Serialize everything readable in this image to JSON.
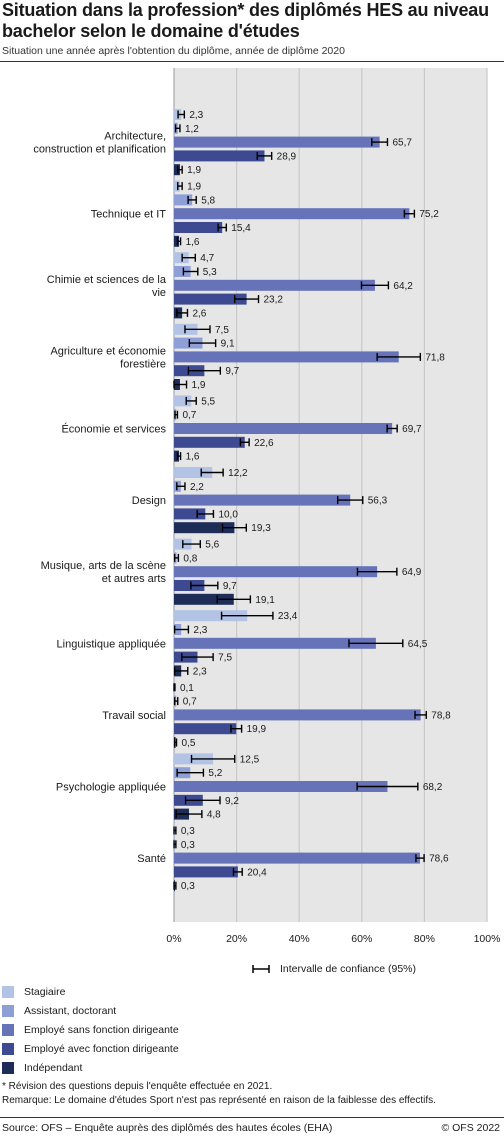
{
  "title": "Situation dans la profession* des diplômés HES au niveau bachelor selon le domaine d'études",
  "subtitle": "Situation une année après l'obtention du diplôme, année de diplôme 2020",
  "ci_legend_label": "Intervalle de confiance (95%)",
  "footnote": "* Révision des questions depuis l'enquête effectuée en 2021.",
  "remark": "Remarque: Le domaine d'études Sport n'est pas représenté en raison de la faiblesse des effectifs.",
  "source": "Source: OFS – Enquête auprès des diplômés des hautes écoles (EHA)",
  "copyright": "© OFS 2022",
  "chart_data": {
    "type": "bar",
    "orientation": "horizontal",
    "categories": [
      "Architecture, construction et planification",
      "Technique et IT",
      "Chimie et sciences de la vie",
      "Agriculture et économie forestière",
      "Économie et services",
      "Design",
      "Musique, arts de la scène et autres arts",
      "Linguistique appliquée",
      "Travail social",
      "Psychologie appliquée",
      "Santé"
    ],
    "category_lines": [
      [
        "Architecture,",
        "construction et planification"
      ],
      [
        "Technique et IT"
      ],
      [
        "Chimie et sciences de la",
        "vie"
      ],
      [
        "Agriculture et économie",
        "forestière"
      ],
      [
        "Économie et services"
      ],
      [
        "Design"
      ],
      [
        "Musique, arts de la scène",
        "et autres arts"
      ],
      [
        "Linguistique appliquée"
      ],
      [
        "Travail social"
      ],
      [
        "Psychologie appliquée"
      ],
      [
        "Santé"
      ]
    ],
    "series": [
      {
        "name": "Stagiaire",
        "color": "#b3c3e6",
        "values": [
          2.3,
          1.9,
          4.7,
          7.5,
          5.5,
          12.2,
          5.6,
          23.4,
          0.1,
          12.5,
          0.3
        ],
        "labels": [
          "2,3",
          "1,9",
          "4,7",
          "7,5",
          "5,5",
          "12,2",
          "5,6",
          "23,4",
          "0,1",
          "12,5",
          "0,3"
        ],
        "ci": [
          [
            1.3,
            3.3
          ],
          [
            1.2,
            2.6
          ],
          [
            2.6,
            6.8
          ],
          [
            3.5,
            11.5
          ],
          [
            3.9,
            7.1
          ],
          [
            8.7,
            15.7
          ],
          [
            2.8,
            8.4
          ],
          [
            15.2,
            31.6
          ],
          [
            0.0,
            0.3
          ],
          [
            5.6,
            19.4
          ],
          [
            0.0,
            0.6
          ]
        ]
      },
      {
        "name": "Assistant, doctorant",
        "color": "#8d9fd6",
        "values": [
          1.2,
          5.8,
          5.3,
          9.1,
          0.7,
          2.2,
          0.8,
          2.3,
          0.7,
          5.2,
          0.3
        ],
        "labels": [
          "1,2",
          "5,8",
          "5,3",
          "9,1",
          "0,7",
          "2,2",
          "0,8",
          "2,3",
          "0,7",
          "5,2",
          "0,3"
        ],
        "ci": [
          [
            0.5,
            1.9
          ],
          [
            4.5,
            7.1
          ],
          [
            3.0,
            7.6
          ],
          [
            4.9,
            13.3
          ],
          [
            0.3,
            1.1
          ],
          [
            0.9,
            3.5
          ],
          [
            0.2,
            1.4
          ],
          [
            0.2,
            4.6
          ],
          [
            0.2,
            1.2
          ],
          [
            1.0,
            9.4
          ],
          [
            0.0,
            0.6
          ]
        ]
      },
      {
        "name": "Employé sans fonction dirigeante",
        "color": "#6673b8",
        "values": [
          65.7,
          75.2,
          64.2,
          71.8,
          69.7,
          56.3,
          64.9,
          64.5,
          78.8,
          68.2,
          78.6
        ],
        "labels": [
          "65,7",
          "75,2",
          "64,2",
          "71,8",
          "69,7",
          "56,3",
          "64,9",
          "64,5",
          "78,8",
          "68,2",
          "78,6"
        ],
        "ci": [
          [
            63.2,
            68.2
          ],
          [
            73.6,
            76.8
          ],
          [
            59.9,
            68.5
          ],
          [
            64.9,
            78.7
          ],
          [
            68.1,
            71.3
          ],
          [
            52.3,
            60.3
          ],
          [
            58.6,
            71.2
          ],
          [
            55.9,
            73.1
          ],
          [
            77.0,
            80.6
          ],
          [
            58.5,
            77.9
          ],
          [
            77.3,
            79.9
          ]
        ]
      },
      {
        "name": "Employé avec fonction dirigeante",
        "color": "#3d4a92",
        "values": [
          28.9,
          15.4,
          23.2,
          9.7,
          22.6,
          10.0,
          9.7,
          7.5,
          19.9,
          9.2,
          20.4
        ],
        "labels": [
          "28,9",
          "15,4",
          "23,2",
          "9,7",
          "22,6",
          "10,0",
          "9,7",
          "7,5",
          "19,9",
          "9,2",
          "20,4"
        ],
        "ci": [
          [
            26.6,
            31.2
          ],
          [
            14.1,
            16.7
          ],
          [
            19.4,
            27.0
          ],
          [
            4.6,
            14.8
          ],
          [
            21.2,
            24.0
          ],
          [
            7.4,
            12.6
          ],
          [
            5.4,
            14.0
          ],
          [
            2.5,
            12.5
          ],
          [
            18.2,
            21.6
          ],
          [
            3.7,
            14.7
          ],
          [
            19.0,
            21.8
          ]
        ]
      },
      {
        "name": "Indépendant",
        "color": "#1e2d58",
        "values": [
          1.9,
          1.6,
          2.6,
          1.9,
          1.6,
          19.3,
          19.1,
          2.3,
          0.5,
          4.8,
          0.3
        ],
        "labels": [
          "1,9",
          "1,6",
          "2,6",
          "1,9",
          "1,6",
          "19,3",
          "19,1",
          "2,3",
          "0,5",
          "4,8",
          "0,3"
        ],
        "ci": [
          [
            1.2,
            2.6
          ],
          [
            1.1,
            2.1
          ],
          [
            0.9,
            4.3
          ],
          [
            0.0,
            4.0
          ],
          [
            1.1,
            2.1
          ],
          [
            15.5,
            23.1
          ],
          [
            13.8,
            24.4
          ],
          [
            0.2,
            4.4
          ],
          [
            0.2,
            0.8
          ],
          [
            0.7,
            8.9
          ],
          [
            0.0,
            0.6
          ]
        ]
      }
    ],
    "x_ticks": [
      "0%",
      "20%",
      "40%",
      "60%",
      "80%",
      "100%"
    ],
    "xlim": [
      0,
      100
    ],
    "unit": "%",
    "grid": true,
    "legend_position": "bottom-left",
    "background": "#e6e6e6"
  }
}
